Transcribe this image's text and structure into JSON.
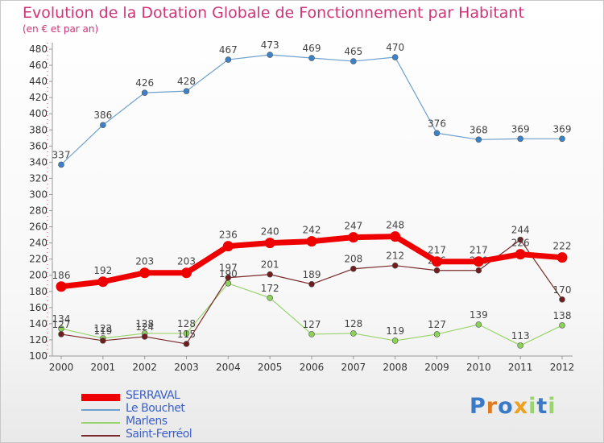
{
  "title": "Evolution de la Dotation Globale de Fonctionnement par Habitant",
  "subtitle": "(en € et par an)",
  "chart_data": {
    "type": "line",
    "categories": [
      "2000",
      "2001",
      "2002",
      "2003",
      "2004",
      "2005",
      "2006",
      "2007",
      "2008",
      "2009",
      "2010",
      "2011",
      "2012"
    ],
    "ylim": [
      100,
      480
    ],
    "yticks": [
      100,
      120,
      140,
      160,
      180,
      200,
      220,
      240,
      260,
      280,
      300,
      320,
      340,
      360,
      380,
      400,
      420,
      440,
      460,
      480
    ],
    "grid": false,
    "legend_position": "bottom-left",
    "series": [
      {
        "name": "Le Bouchet",
        "color": "#6ea0d0",
        "marker": "#3c82c8",
        "width": 1.2,
        "radius": 3.5,
        "values": [
          337,
          386,
          426,
          428,
          467,
          473,
          469,
          465,
          470,
          376,
          368,
          369,
          369
        ]
      },
      {
        "name": "Marlens",
        "color": "#9ad46e",
        "marker": "#8cd25a",
        "width": 1.2,
        "radius": 3.5,
        "values": [
          134,
          122,
          128,
          128,
          190,
          172,
          127,
          128,
          119,
          127,
          139,
          113,
          138
        ]
      },
      {
        "name": "Saint-Ferréol",
        "color": "#7a2a2a",
        "marker": "#6e1e1e",
        "width": 1.2,
        "radius": 3.5,
        "values": [
          127,
          119,
          124,
          115,
          197,
          201,
          189,
          208,
          212,
          206,
          206,
          244,
          170
        ]
      },
      {
        "name": "SERRAVAL",
        "color": "#ee0000",
        "marker": "#ee0000",
        "width": 7,
        "radius": 6.5,
        "values": [
          186,
          192,
          203,
          203,
          236,
          240,
          242,
          247,
          248,
          217,
          217,
          226,
          222
        ]
      }
    ],
    "legend_order": [
      "SERRAVAL",
      "Le Bouchet",
      "Marlens",
      "Saint-Ferréol"
    ]
  },
  "logo": {
    "text": "Proxiti",
    "colors": [
      "#3a78c8",
      "#e07a1e",
      "#3a78c8",
      "#f0a020",
      "#9ad46e",
      "#3a78c8",
      "#9ad46e"
    ]
  }
}
